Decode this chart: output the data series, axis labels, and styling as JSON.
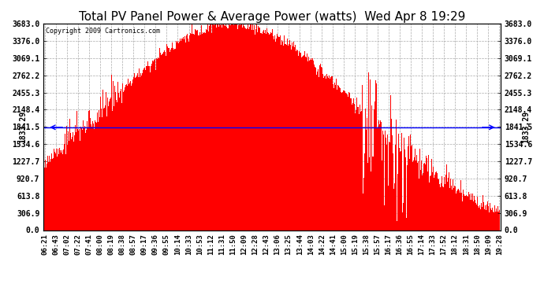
{
  "title": "Total PV Panel Power & Average Power (watts)  Wed Apr 8 19:29",
  "copyright": "Copyright 2009 Cartronics.com",
  "avg_power": 1833.29,
  "y_max": 3683.0,
  "y_min": 0.0,
  "y_ticks": [
    0.0,
    306.9,
    613.8,
    920.7,
    1227.7,
    1534.6,
    1841.5,
    2148.4,
    2455.3,
    2762.2,
    3069.1,
    3376.0,
    3683.0
  ],
  "x_labels": [
    "06:21",
    "06:43",
    "07:02",
    "07:22",
    "07:41",
    "08:00",
    "08:19",
    "08:38",
    "08:57",
    "09:17",
    "09:36",
    "09:55",
    "10:14",
    "10:33",
    "10:53",
    "11:12",
    "11:31",
    "11:50",
    "12:09",
    "12:28",
    "12:43",
    "13:06",
    "13:25",
    "13:44",
    "14:03",
    "14:22",
    "14:41",
    "15:00",
    "15:19",
    "15:38",
    "15:57",
    "16:17",
    "16:36",
    "16:55",
    "17:14",
    "17:33",
    "17:52",
    "18:12",
    "18:31",
    "18:50",
    "19:09",
    "19:28"
  ],
  "bar_color": "#FF0000",
  "line_color": "#0000FF",
  "bg_color": "#FFFFFF",
  "grid_color": "#AAAAAA",
  "title_fontsize": 11,
  "copyright_fontsize": 6,
  "tick_fontsize": 7,
  "label_fontsize": 7
}
